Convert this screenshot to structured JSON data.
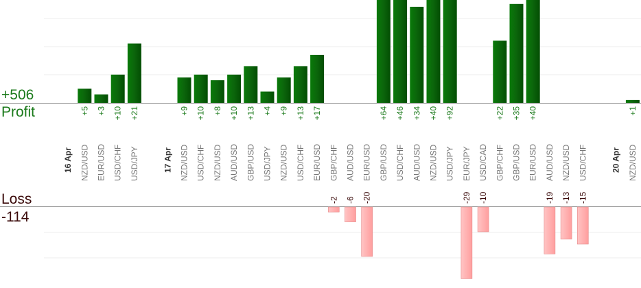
{
  "summary": {
    "profit_total": "+506",
    "profit_label": "Profit",
    "loss_label": "Loss",
    "loss_total": "-114"
  },
  "colors": {
    "profit_bar": "#0a6e0a",
    "loss_bar": "#ffb3b3",
    "profit_text": "#1b7a1b",
    "loss_text": "#3a0a0a",
    "axis": "#888888",
    "grid": "#eeeeee"
  },
  "chart_data": {
    "type": "bar",
    "ylabel": "",
    "bars": [
      {
        "label": "16 Apr",
        "kind": "date"
      },
      {
        "label": "NZD/USD",
        "value": 5,
        "text": "+5"
      },
      {
        "label": "EUR/USD",
        "value": 3,
        "text": "+3"
      },
      {
        "label": "USD/CHF",
        "value": 10,
        "text": "+10"
      },
      {
        "label": "USD/JPY",
        "value": 21,
        "text": "+21"
      },
      {
        "label": "",
        "kind": "gap"
      },
      {
        "label": "17 Apr",
        "kind": "date"
      },
      {
        "label": "NZD/USD",
        "value": 9,
        "text": "+9"
      },
      {
        "label": "USD/CHF",
        "value": 10,
        "text": "+10"
      },
      {
        "label": "NZD/USD",
        "value": 8,
        "text": "+8"
      },
      {
        "label": "AUD/USD",
        "value": 10,
        "text": "+10"
      },
      {
        "label": "GBP/USD",
        "value": 13,
        "text": "+13"
      },
      {
        "label": "USD/JPY",
        "value": 4,
        "text": "+4"
      },
      {
        "label": "NZD/USD",
        "value": 9,
        "text": "+9"
      },
      {
        "label": "USD/CHF",
        "value": 13,
        "text": "+13"
      },
      {
        "label": "EUR/USD",
        "value": 17,
        "text": "+17"
      },
      {
        "label": "GBP/CHF",
        "value": -2,
        "text": "-2"
      },
      {
        "label": "AUD/USD",
        "value": -6,
        "text": "-6"
      },
      {
        "label": "EUR/USD",
        "value": -20,
        "text": "-20"
      },
      {
        "label": "GBP/USD",
        "value": 64,
        "text": "+64"
      },
      {
        "label": "USD/CHF",
        "value": 46,
        "text": "+46"
      },
      {
        "label": "AUD/USD",
        "value": 34,
        "text": "+34"
      },
      {
        "label": "NZD/USD",
        "value": 40,
        "text": "+40"
      },
      {
        "label": "USD/JPY",
        "value": 92,
        "text": "+92"
      },
      {
        "label": "EUR/JPY",
        "value": -29,
        "text": "-29"
      },
      {
        "label": "USD/CAD",
        "value": -10,
        "text": "-10"
      },
      {
        "label": "GBP/CHF",
        "value": 22,
        "text": "+22"
      },
      {
        "label": "GBP/USD",
        "value": 35,
        "text": "+35"
      },
      {
        "label": "EUR/USD",
        "value": 40,
        "text": "+40"
      },
      {
        "label": "AUD/USD",
        "value": -19,
        "text": "-19"
      },
      {
        "label": "NZD/USD",
        "value": -13,
        "text": "-13"
      },
      {
        "label": "USD/CHF",
        "value": -15,
        "text": "-15"
      },
      {
        "label": "",
        "kind": "gap"
      },
      {
        "label": "20 Apr",
        "kind": "date"
      },
      {
        "label": "NZD/USD",
        "value": 1,
        "text": "+1"
      }
    ]
  }
}
